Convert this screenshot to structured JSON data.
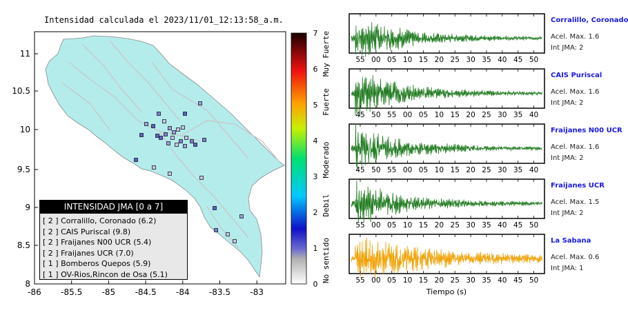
{
  "map": {
    "title": "Intensidad calculada el 2023/11/01_12:13:58_a.m.",
    "x_ticks": [
      "-86",
      "-85.5",
      "-85",
      "-84.5",
      "-84",
      "-83.5",
      "-83"
    ],
    "y_ticks": [
      "11",
      "10.5",
      "10",
      "9.5",
      "9",
      "8.5",
      "8"
    ],
    "colors": {
      "land": "#b4ecec",
      "sea": "#ffffff",
      "roads": "#c8c8c8",
      "station_outline": "#000000"
    }
  },
  "colorbar": {
    "ticks": [
      "7",
      "6",
      "5",
      "4",
      "3",
      "2",
      "1",
      "0"
    ],
    "categories": [
      "Muy Fuerte",
      "Fuerte",
      "Moderado",
      "Debil",
      "No sentido"
    ]
  },
  "legend": {
    "title": "INTENSIDAD JMA [0 a 7]",
    "items": [
      "[ 2 ]  Corralillo, Coronado (6.2)",
      "[ 2 ]  CAIS Puriscal (9.8)",
      "[ 2 ]  Fraijanes N00 UCR (5.4)",
      "[ 2 ]  Fraijanes UCR (7.0)",
      "[ 1 ]  Bomberos Quepos (5.9)",
      "[ 1 ]  OV-Rios,Rincon de Osa (5.1)"
    ]
  },
  "waveforms": [
    {
      "name": "Corralillo, Coronado",
      "acel": "Acel. Max. 1.6",
      "int": "Int JMA: 2",
      "color": "#1e7a1e",
      "ticks": [
        "55",
        "00",
        "05",
        "10",
        "15",
        "20",
        "25",
        "30",
        "35",
        "40",
        "45",
        "50"
      ]
    },
    {
      "name": "CAIS Puriscal",
      "acel": "Acel. Max. 1.6",
      "int": "Int JMA: 2",
      "color": "#1e7a1e",
      "ticks": [
        "45",
        "50",
        "55",
        "00",
        "05",
        "10",
        "15",
        "20",
        "25",
        "30",
        "35",
        "40"
      ]
    },
    {
      "name": "Fraijanes N00 UCR",
      "acel": "Acel. Max. 1.6",
      "int": "Int JMA: 2",
      "color": "#1e7a1e",
      "ticks": [
        "45",
        "50",
        "55",
        "00",
        "05",
        "10",
        "15",
        "20",
        "25",
        "30",
        "35",
        "40"
      ]
    },
    {
      "name": "Fraijanes UCR",
      "acel": "Acel. Max. 1.5",
      "int": "Int JMA: 2",
      "color": "#1e7a1e",
      "ticks": [
        "55",
        "00",
        "05",
        "10",
        "15",
        "20",
        "25",
        "30",
        "35",
        "40",
        "45",
        "50"
      ]
    },
    {
      "name": "La Sabana",
      "acel": "Acel. Max. 0.6",
      "int": "Int JMA: 1",
      "color": "#f0a000",
      "ticks": [
        "55",
        "00",
        "05",
        "10",
        "15",
        "20",
        "25",
        "30",
        "35",
        "40",
        "45",
        "50"
      ]
    }
  ],
  "waveform_xlabel": "Tiempo (s)"
}
